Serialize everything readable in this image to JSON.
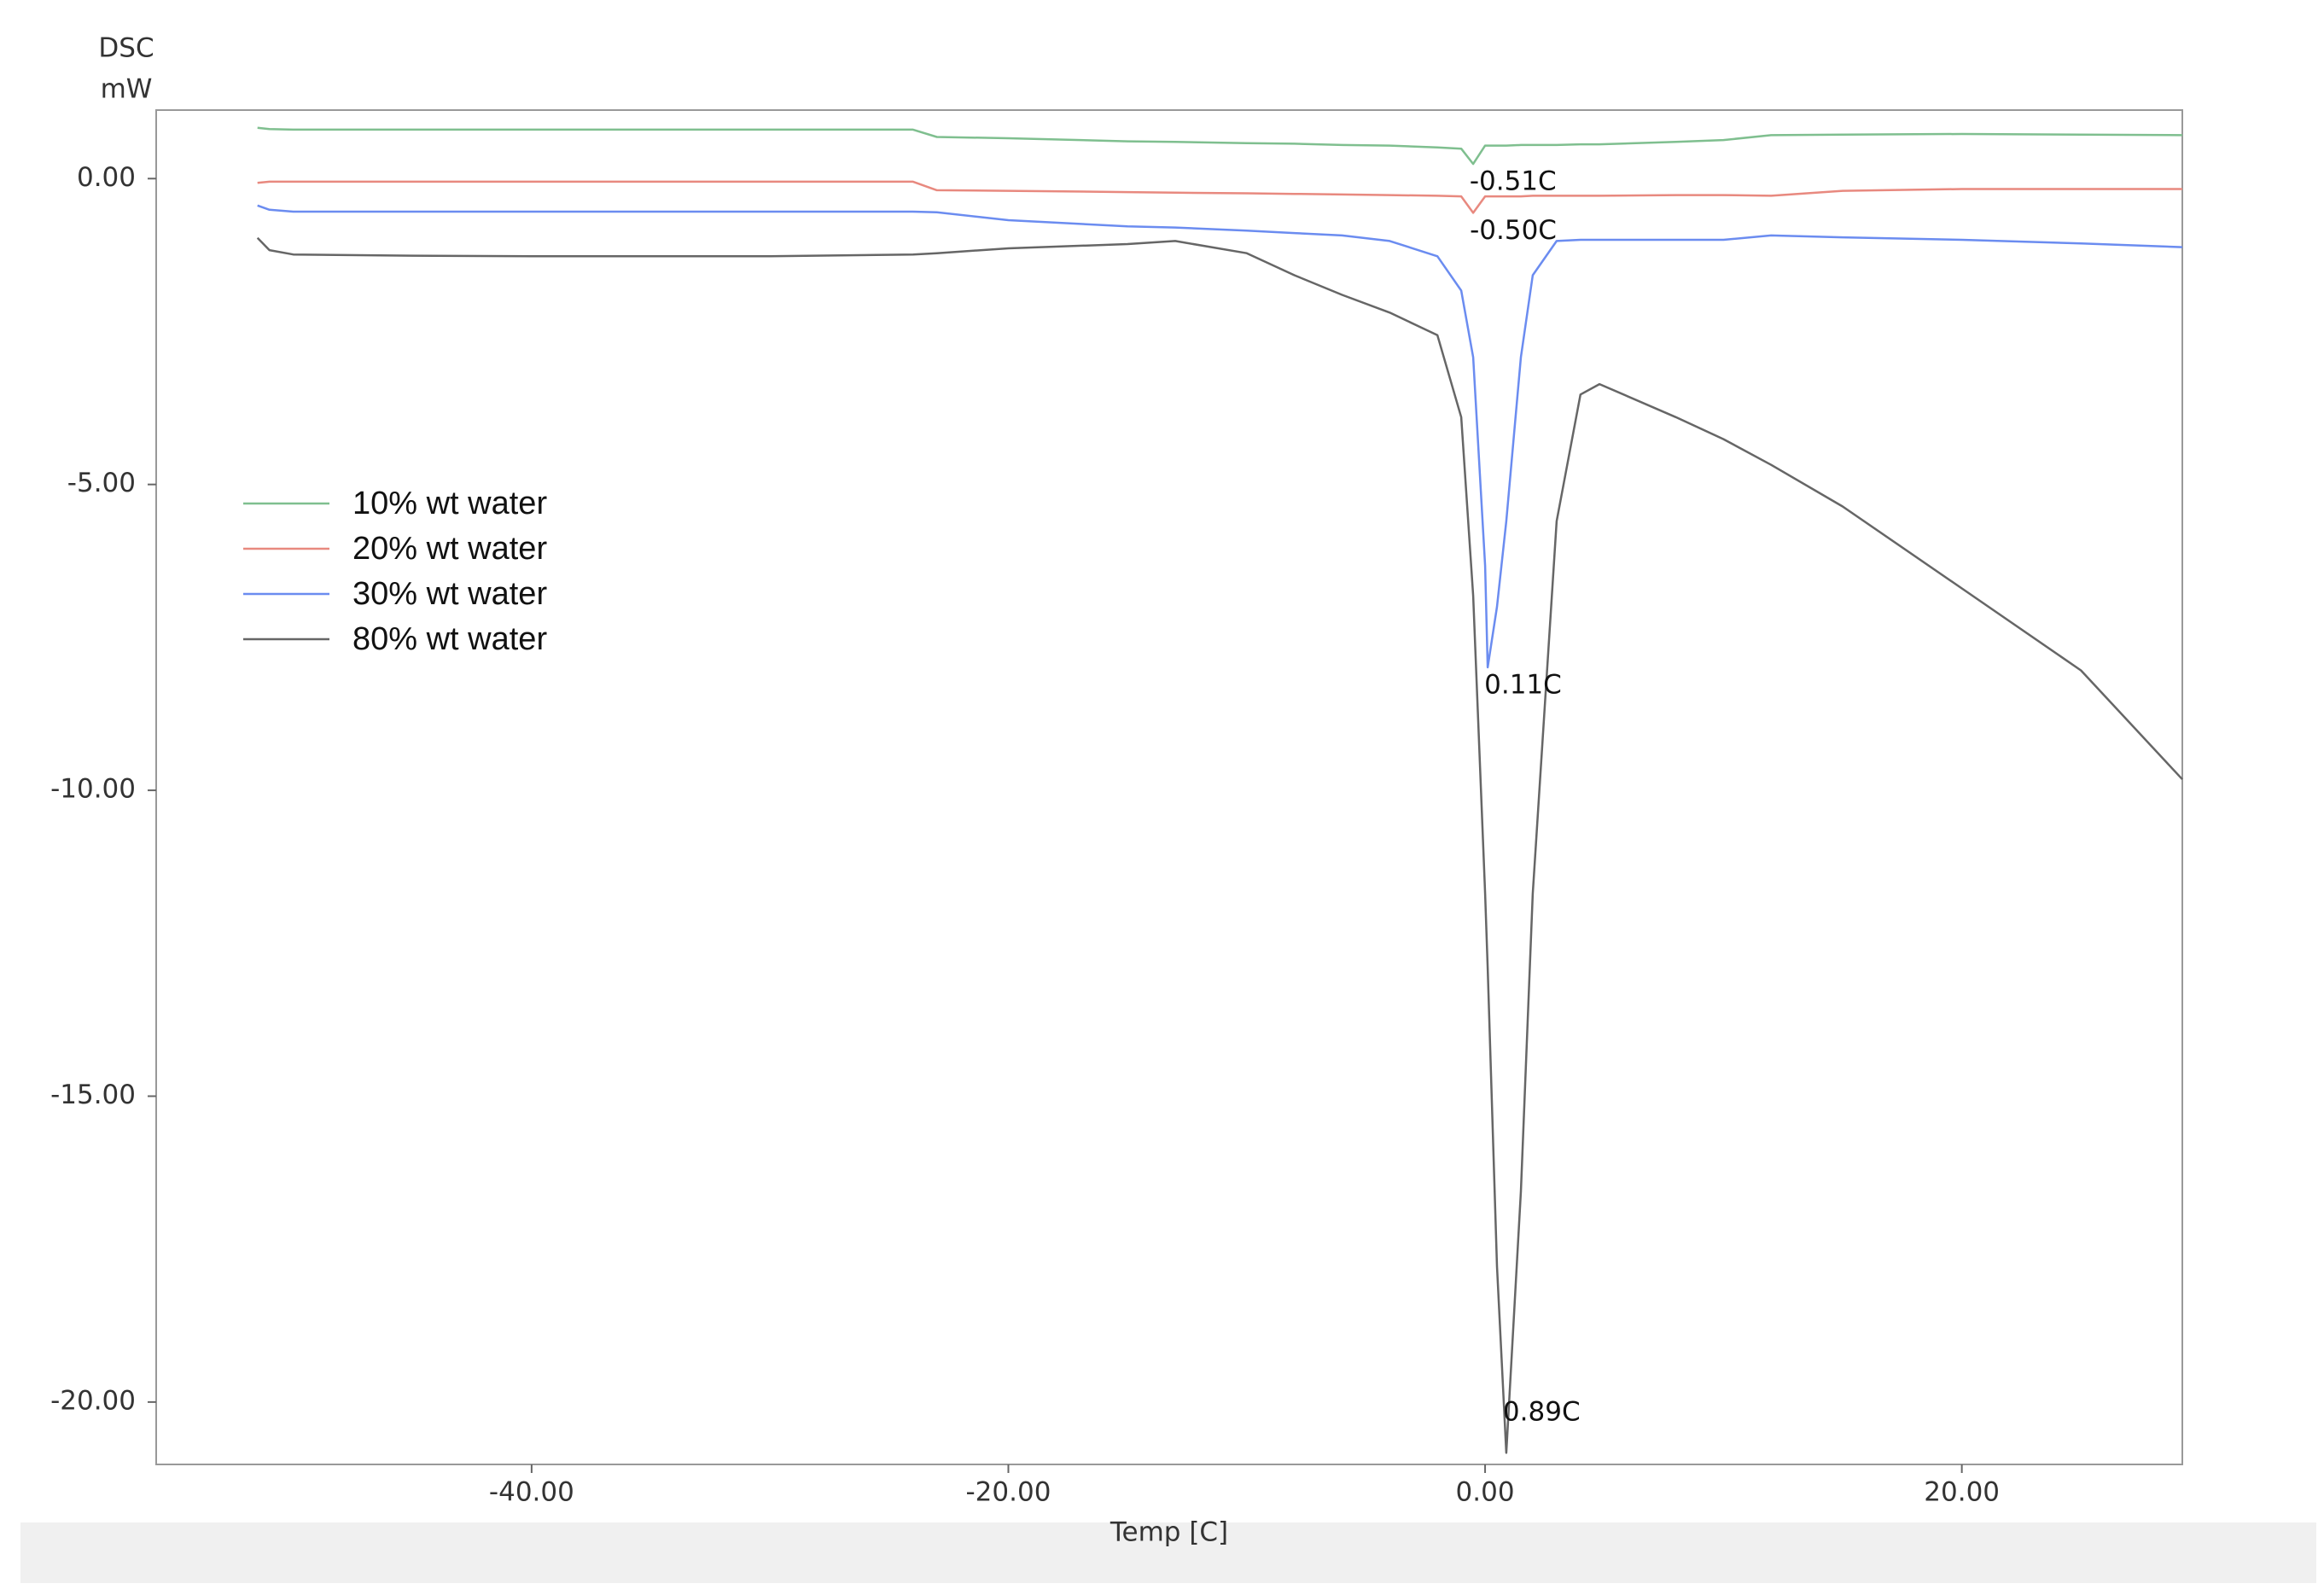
{
  "chart_data": {
    "type": "line",
    "ylabel": "DSC",
    "yunit": "mW",
    "xlabel": "Temp  [C]",
    "x": [
      -51.5,
      -51,
      -50,
      -45,
      -40,
      -30,
      -24,
      -23,
      -20,
      -15,
      -13,
      -10,
      -8,
      -6,
      -4,
      -2,
      -1,
      -0.5,
      0,
      0.11,
      0.5,
      0.89,
      1.5,
      2,
      3,
      4,
      4.8,
      8,
      10,
      12,
      15,
      20,
      25,
      29.25
    ],
    "series": [
      {
        "name": "10% wt water",
        "color": "#7fbf8f",
        "values": [
          0.83,
          0.81,
          0.8,
          0.8,
          0.8,
          0.8,
          0.8,
          0.68,
          0.66,
          0.61,
          0.6,
          0.58,
          0.57,
          0.55,
          0.54,
          0.51,
          0.49,
          0.24,
          0.54,
          0.54,
          0.54,
          0.54,
          0.55,
          0.55,
          0.55,
          0.56,
          0.56,
          0.6,
          0.63,
          0.71,
          0.72,
          0.73,
          0.72,
          0.71
        ]
      },
      {
        "name": "20% wt water",
        "color": "#e8897f",
        "values": [
          -0.07,
          -0.05,
          -0.05,
          -0.05,
          -0.05,
          -0.05,
          -0.05,
          -0.19,
          -0.2,
          -0.22,
          -0.23,
          -0.24,
          -0.25,
          -0.26,
          -0.27,
          -0.28,
          -0.29,
          -0.56,
          -0.29,
          -0.29,
          -0.29,
          -0.29,
          -0.29,
          -0.28,
          -0.28,
          -0.28,
          -0.28,
          -0.27,
          -0.27,
          -0.28,
          -0.2,
          -0.17,
          -0.17,
          -0.17
        ]
      },
      {
        "name": "30% wt water",
        "color": "#6b8cf0",
        "values": [
          -0.44,
          -0.51,
          -0.54,
          -0.54,
          -0.54,
          -0.54,
          -0.54,
          -0.55,
          -0.68,
          -0.78,
          -0.8,
          -0.85,
          -0.89,
          -0.93,
          -1.02,
          -1.27,
          -1.83,
          -2.92,
          -6.33,
          -7.99,
          -7.0,
          -5.6,
          -2.92,
          -1.58,
          -1.02,
          -1.0,
          -1.0,
          -1.0,
          -1.0,
          -0.93,
          -0.96,
          -1.0,
          -1.06,
          -1.12
        ]
      },
      {
        "name": "80% wt water",
        "color": "#666666",
        "values": [
          -0.97,
          -1.17,
          -1.24,
          -1.26,
          -1.27,
          -1.27,
          -1.24,
          -1.22,
          -1.14,
          -1.07,
          -1.02,
          -1.22,
          -1.58,
          -1.9,
          -2.19,
          -2.56,
          -3.9,
          -6.82,
          -11.69,
          -12.9,
          -17.78,
          -20.83,
          -16.56,
          -11.69,
          -5.6,
          -3.53,
          -3.36,
          -3.9,
          -4.26,
          -4.68,
          -5.36,
          -6.7,
          -8.04,
          -9.82
        ]
      }
    ],
    "annotations": [
      {
        "text": "-0.51C",
        "x": -0.51,
        "y": 0.24
      },
      {
        "text": "-0.50C",
        "x": -0.5,
        "y": -0.56
      },
      {
        "text": "0.11C",
        "x": 0.11,
        "y": -7.99
      },
      {
        "text": "0.89C",
        "x": 0.89,
        "y": -20.83
      }
    ],
    "xlim": [
      -55.75,
      29.25
    ],
    "ylim": [
      -21.02,
      1.12
    ],
    "xticks": [
      {
        "value": -40,
        "label": "-40.00"
      },
      {
        "value": -20,
        "label": "-20.00"
      },
      {
        "value": 0,
        "label": "0.00"
      },
      {
        "value": 20,
        "label": "20.00"
      }
    ],
    "yticks": [
      {
        "value": 0,
        "label": "0.00"
      },
      {
        "value": -5,
        "label": "-5.00"
      },
      {
        "value": -10,
        "label": "-10.00"
      },
      {
        "value": -15,
        "label": "-15.00"
      },
      {
        "value": -20,
        "label": "-20.00"
      }
    ],
    "grid": false,
    "legend": "left"
  }
}
